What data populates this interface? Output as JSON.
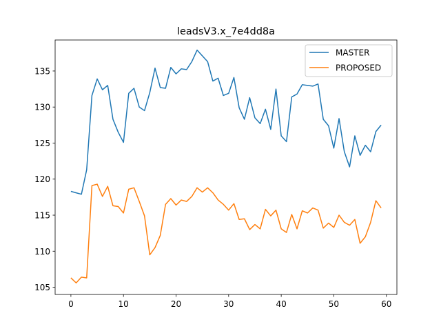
{
  "chart_data": {
    "type": "line",
    "title": "leadsV3.x_7e4dd8a",
    "xlabel": "",
    "ylabel": "",
    "xlim": [
      -3,
      62
    ],
    "ylim": [
      104,
      139.3
    ],
    "x_ticks": [
      0,
      10,
      20,
      30,
      40,
      50,
      60
    ],
    "y_ticks": [
      105,
      110,
      115,
      120,
      125,
      130,
      135
    ],
    "grid": false,
    "legend_position": "top-right",
    "x": [
      0,
      1,
      2,
      3,
      4,
      5,
      6,
      7,
      8,
      9,
      10,
      11,
      12,
      13,
      14,
      15,
      16,
      17,
      18,
      19,
      20,
      21,
      22,
      23,
      24,
      25,
      26,
      27,
      28,
      29,
      30,
      31,
      32,
      33,
      34,
      35,
      36,
      37,
      38,
      39,
      40,
      41,
      42,
      43,
      44,
      45,
      46,
      47,
      48,
      49,
      50,
      51,
      52,
      53,
      54,
      55,
      56,
      57,
      58,
      59
    ],
    "series": [
      {
        "name": "MASTER",
        "color": "#1f77b4",
        "values": [
          118.3,
          118.1,
          117.9,
          121.3,
          131.6,
          133.9,
          132.4,
          133.0,
          128.3,
          126.5,
          125.1,
          131.9,
          132.6,
          130.0,
          129.5,
          132.0,
          135.4,
          132.7,
          132.6,
          135.5,
          134.6,
          135.3,
          135.2,
          136.3,
          137.9,
          137.1,
          136.3,
          133.6,
          134.0,
          131.6,
          131.9,
          134.1,
          129.9,
          128.3,
          131.3,
          128.5,
          127.7,
          129.7,
          126.9,
          132.5,
          126.0,
          125.2,
          131.4,
          131.8,
          133.1,
          133.0,
          132.9,
          133.2,
          128.3,
          127.4,
          124.3,
          128.4,
          123.8,
          121.7,
          126.0,
          123.3,
          124.7,
          123.8,
          126.6,
          127.5
        ]
      },
      {
        "name": "PROPOSED",
        "color": "#ff7f0e",
        "values": [
          106.3,
          105.6,
          106.4,
          106.3,
          119.1,
          119.3,
          117.6,
          119.0,
          116.3,
          116.2,
          115.3,
          118.6,
          118.8,
          116.9,
          114.9,
          109.5,
          110.5,
          112.2,
          116.5,
          117.3,
          116.4,
          117.1,
          116.9,
          117.6,
          118.8,
          118.2,
          118.8,
          118.1,
          117.1,
          116.5,
          115.7,
          116.6,
          114.4,
          114.5,
          113.0,
          113.7,
          113.1,
          115.8,
          114.9,
          115.7,
          113.1,
          112.6,
          115.1,
          113.1,
          115.6,
          115.3,
          116.0,
          115.7,
          113.2,
          113.9,
          113.3,
          115.0,
          114.0,
          113.6,
          114.4,
          111.1,
          112.0,
          114.0,
          117.0,
          116.0
        ]
      }
    ]
  }
}
